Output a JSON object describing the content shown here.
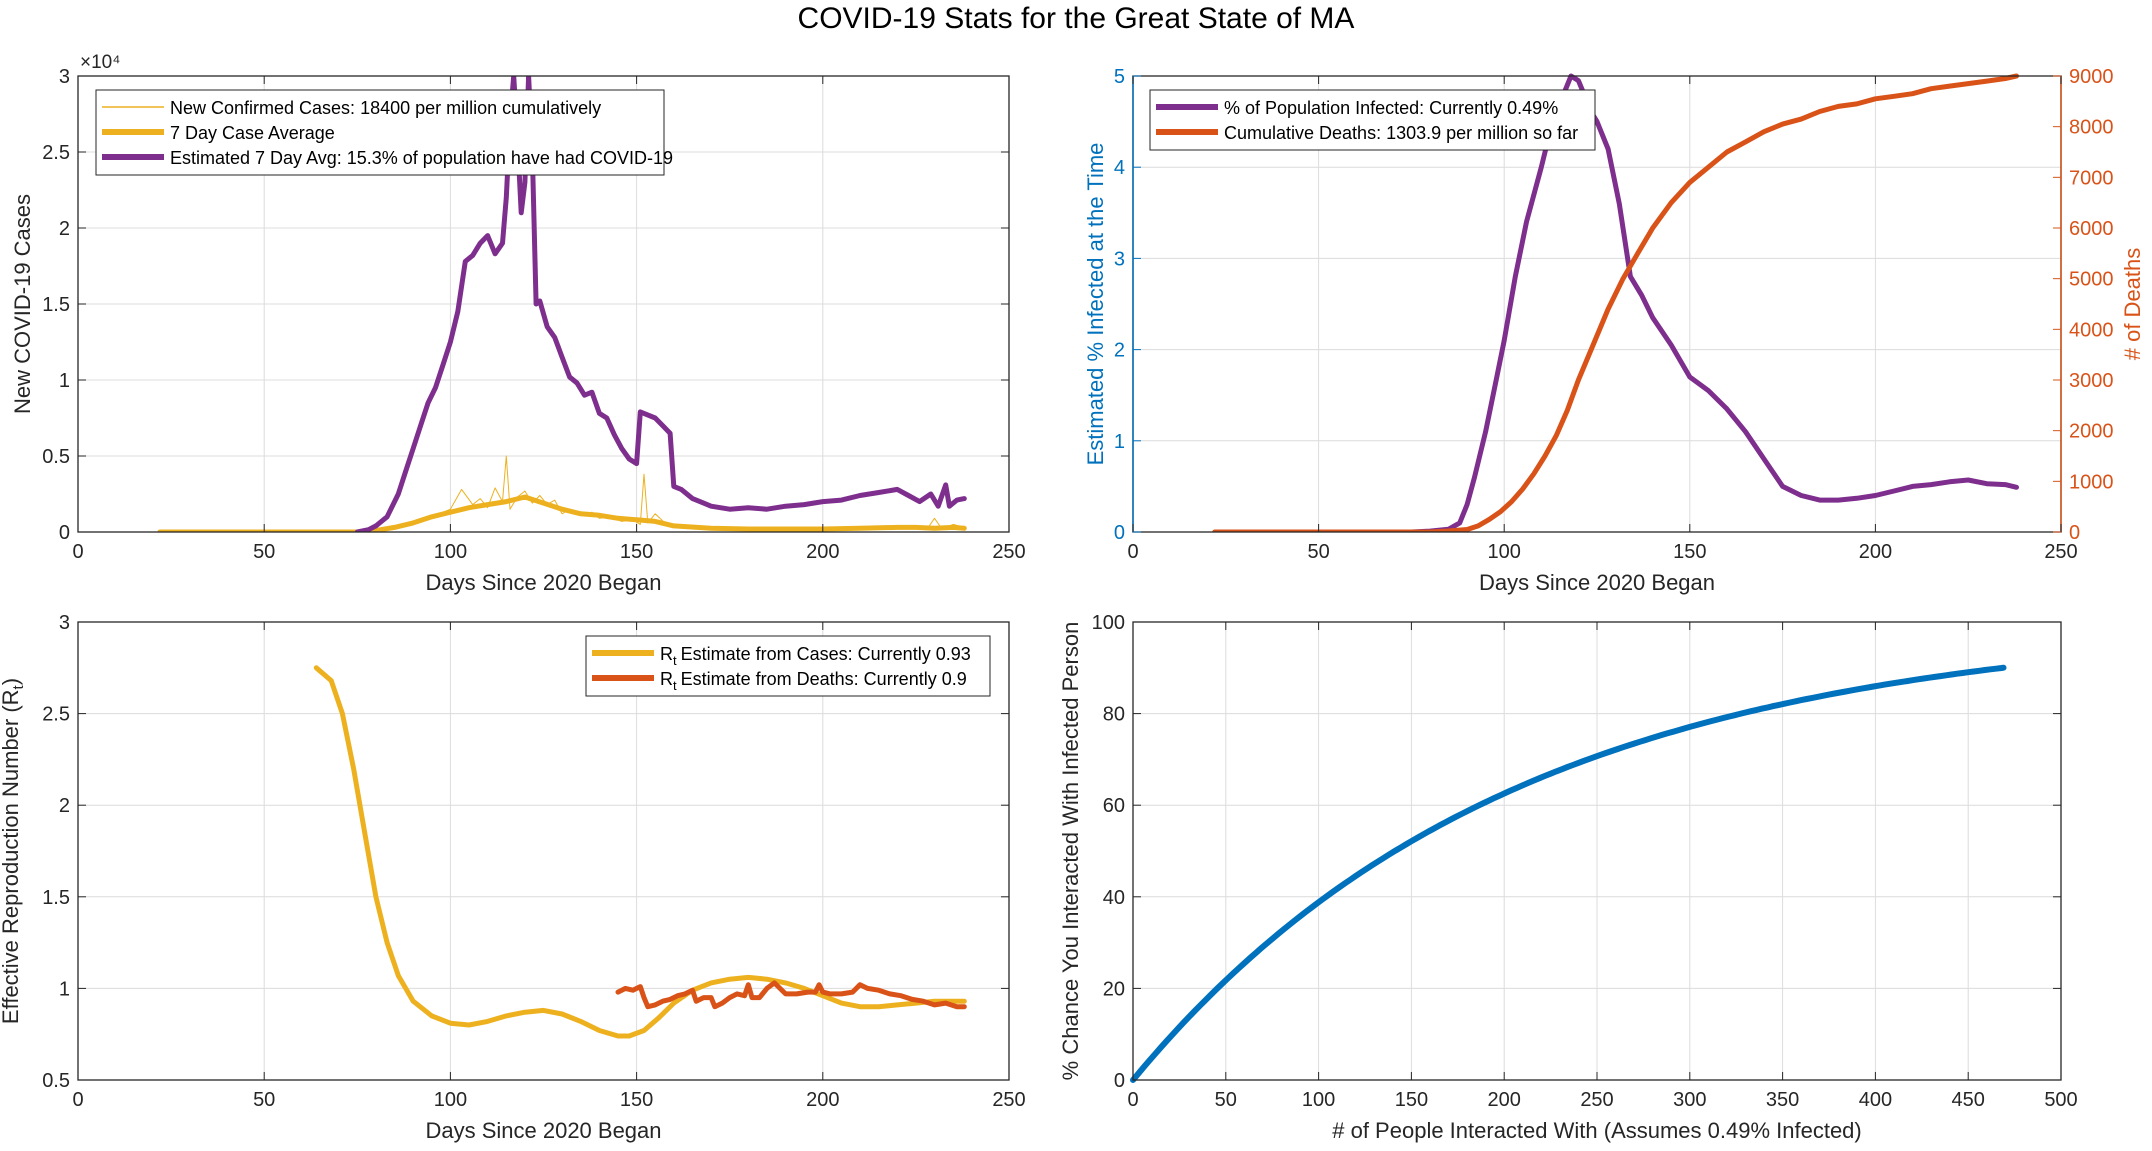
{
  "figure_title": "COVID-19 Stats for the Great State of MA",
  "colors": {
    "purple": "#7E2F8E",
    "yellow": "#EDB120",
    "orange": "#D95319",
    "blue": "#0072BD",
    "axis": "#262626",
    "grid": "#DCDCDC"
  },
  "chart_data": [
    {
      "type": "line",
      "xlabel": "Days Since 2020 Began",
      "ylabel": "New COVID-19 Cases",
      "xlim": [
        0,
        250
      ],
      "ylim": [
        0,
        30000
      ],
      "xticks": [
        0,
        50,
        100,
        150,
        200,
        250
      ],
      "yticks": [
        0,
        5000,
        10000,
        15000,
        20000,
        25000,
        30000
      ],
      "ytick_labels": [
        "0",
        "0.5",
        "1",
        "1.5",
        "2",
        "2.5",
        "3"
      ],
      "y_multiplier": "×10⁴",
      "grid": true,
      "legend": "top-left",
      "series": [
        {
          "name": "New Confirmed Cases: 18400 per million cumulatively",
          "color": "#EDB120",
          "width": 1,
          "x": [
            22,
            60,
            76,
            80,
            85,
            90,
            95,
            100,
            103,
            106,
            108,
            110,
            112,
            114,
            115,
            116,
            118,
            120,
            122,
            124,
            126,
            128,
            130,
            132,
            135,
            138,
            140,
            143,
            146,
            149,
            151,
            152,
            153,
            155,
            158,
            160,
            165,
            170,
            175,
            180,
            185,
            190,
            195,
            200,
            205,
            210,
            215,
            220,
            225,
            228,
            230,
            232,
            235,
            238
          ],
          "y": [
            0,
            0,
            0,
            100,
            300,
            600,
            1000,
            1500,
            2800,
            1800,
            2200,
            1600,
            2900,
            2000,
            5000,
            1500,
            2300,
            2700,
            1900,
            2400,
            1800,
            2100,
            1200,
            1500,
            1100,
            1300,
            900,
            1000,
            700,
            800,
            500,
            3800,
            600,
            1200,
            500,
            400,
            300,
            300,
            200,
            200,
            200,
            200,
            200,
            250,
            300,
            300,
            350,
            400,
            300,
            200,
            900,
            200,
            500,
            300
          ]
        },
        {
          "name": "7 Day Case Average",
          "color": "#EDB120",
          "width": 5,
          "x": [
            22,
            76,
            80,
            85,
            90,
            95,
            100,
            105,
            110,
            115,
            120,
            125,
            130,
            135,
            140,
            145,
            150,
            155,
            160,
            170,
            180,
            190,
            200,
            210,
            220,
            225,
            230,
            235,
            238
          ],
          "y": [
            0,
            0,
            100,
            300,
            600,
            1000,
            1300,
            1600,
            1800,
            2000,
            2300,
            1900,
            1500,
            1200,
            1100,
            900,
            800,
            700,
            400,
            250,
            200,
            200,
            200,
            250,
            300,
            300,
            250,
            300,
            250
          ]
        },
        {
          "name": "Estimated 7 Day Avg: 15.3% of population have had COVID-19",
          "color": "#7E2F8E",
          "width": 5,
          "x": [
            75,
            78,
            80,
            83,
            86,
            88,
            90,
            92,
            94,
            96,
            98,
            100,
            102,
            104,
            106,
            108,
            110,
            112,
            114,
            115,
            116,
            117,
            118,
            119,
            120,
            121,
            122,
            123,
            124,
            126,
            128,
            130,
            132,
            134,
            136,
            138,
            140,
            142,
            144,
            146,
            148,
            150,
            151,
            152,
            155,
            157,
            159,
            160,
            162,
            165,
            168,
            170,
            175,
            180,
            185,
            190,
            195,
            200,
            205,
            210,
            215,
            220,
            223,
            226,
            229,
            231,
            233,
            234,
            236,
            238
          ],
          "y": [
            0,
            150,
            400,
            1000,
            2500,
            4000,
            5500,
            7000,
            8500,
            9500,
            11000,
            12500,
            14500,
            17800,
            18200,
            19000,
            19500,
            18300,
            19000,
            22000,
            27000,
            30000,
            26000,
            21000,
            23000,
            30000,
            25000,
            15000,
            15200,
            13500,
            12800,
            11500,
            10200,
            9800,
            9000,
            9200,
            7800,
            7500,
            6400,
            5500,
            4800,
            4500,
            7900,
            7800,
            7500,
            7000,
            6500,
            3000,
            2800,
            2200,
            1900,
            1700,
            1500,
            1600,
            1500,
            1700,
            1800,
            2000,
            2100,
            2400,
            2600,
            2800,
            2400,
            2000,
            2500,
            1700,
            3100,
            1700,
            2100,
            2200
          ]
        }
      ]
    },
    {
      "type": "line",
      "xlabel": "Days Since 2020 Began",
      "ylabel": "Estimated % Infected at the Time",
      "ylabel_right": "# of Deaths",
      "xlim": [
        0,
        250
      ],
      "ylim": [
        0,
        5
      ],
      "ylim_right": [
        0,
        9000
      ],
      "xticks": [
        0,
        50,
        100,
        150,
        200,
        250
      ],
      "yticks": [
        0,
        1,
        2,
        3,
        4,
        5
      ],
      "yticks_right": [
        0,
        1000,
        2000,
        3000,
        4000,
        5000,
        6000,
        7000,
        8000,
        9000
      ],
      "grid": true,
      "legend": "top-left",
      "series": [
        {
          "name": "% of Population Infected: Currently 0.49%",
          "axis": "left",
          "color": "#7E2F8E",
          "width": 5,
          "x": [
            75,
            80,
            85,
            88,
            90,
            92,
            95,
            98,
            100,
            103,
            106,
            110,
            113,
            116,
            118,
            120,
            121,
            122,
            125,
            128,
            131,
            134,
            137,
            140,
            145,
            150,
            155,
            160,
            165,
            170,
            175,
            180,
            185,
            190,
            195,
            200,
            205,
            210,
            215,
            220,
            225,
            230,
            235,
            238
          ],
          "y": [
            0,
            0.01,
            0.03,
            0.1,
            0.3,
            0.6,
            1.1,
            1.7,
            2.1,
            2.8,
            3.4,
            4.0,
            4.5,
            4.8,
            5.0,
            4.95,
            4.85,
            4.7,
            4.5,
            4.2,
            3.6,
            2.8,
            2.6,
            2.35,
            2.05,
            1.7,
            1.55,
            1.35,
            1.1,
            0.8,
            0.5,
            0.4,
            0.35,
            0.35,
            0.37,
            0.4,
            0.45,
            0.5,
            0.52,
            0.55,
            0.57,
            0.53,
            0.52,
            0.49
          ]
        },
        {
          "name": "Cumulative Deaths: 1303.9 per million so far",
          "axis": "right",
          "color": "#D95319",
          "width": 5,
          "x": [
            22,
            60,
            80,
            85,
            90,
            93,
            96,
            99,
            102,
            105,
            108,
            111,
            114,
            117,
            120,
            124,
            128,
            132,
            136,
            140,
            145,
            150,
            155,
            160,
            165,
            170,
            175,
            180,
            185,
            190,
            195,
            200,
            205,
            210,
            215,
            220,
            225,
            230,
            235,
            238
          ],
          "y": [
            0,
            0,
            0,
            20,
            50,
            120,
            250,
            400,
            600,
            850,
            1150,
            1500,
            1900,
            2400,
            3000,
            3700,
            4400,
            5000,
            5500,
            6000,
            6500,
            6900,
            7200,
            7500,
            7700,
            7900,
            8050,
            8150,
            8300,
            8400,
            8450,
            8550,
            8600,
            8650,
            8750,
            8800,
            8850,
            8900,
            8950,
            9000
          ]
        }
      ]
    },
    {
      "type": "line",
      "xlabel": "Days Since 2020 Began",
      "ylabel": "Effective Reproduction Number (R",
      "ylabel_sub": "t",
      "ylabel_end": ")",
      "xlim": [
        0,
        250
      ],
      "ylim": [
        0.5,
        3
      ],
      "xticks": [
        0,
        50,
        100,
        150,
        200,
        250
      ],
      "yticks": [
        0.5,
        1,
        1.5,
        2,
        2.5,
        3
      ],
      "grid": true,
      "legend": "top-right",
      "series": [
        {
          "name": "Estimate from Cases: Currently 0.93",
          "name_prefix": "R",
          "name_sub": "t",
          "color": "#EDB120",
          "width": 5,
          "x": [
            64,
            68,
            71,
            74,
            77,
            80,
            83,
            86,
            90,
            95,
            100,
            105,
            110,
            115,
            120,
            125,
            130,
            135,
            140,
            145,
            148,
            152,
            156,
            160,
            165,
            170,
            175,
            180,
            185,
            190,
            195,
            200,
            205,
            210,
            215,
            220,
            225,
            230,
            235,
            238
          ],
          "y": [
            2.75,
            2.68,
            2.5,
            2.2,
            1.85,
            1.5,
            1.25,
            1.07,
            0.93,
            0.85,
            0.81,
            0.8,
            0.82,
            0.85,
            0.87,
            0.88,
            0.86,
            0.82,
            0.77,
            0.74,
            0.74,
            0.77,
            0.84,
            0.92,
            0.99,
            1.03,
            1.05,
            1.06,
            1.05,
            1.03,
            1.0,
            0.96,
            0.92,
            0.9,
            0.9,
            0.91,
            0.92,
            0.93,
            0.93,
            0.93
          ]
        },
        {
          "name": "Estimate from Deaths: Currently 0.9",
          "name_prefix": "R",
          "name_sub": "t",
          "color": "#D95319",
          "width": 5,
          "x": [
            145,
            147,
            149,
            151,
            152,
            153,
            155,
            157,
            159,
            161,
            163,
            165,
            166,
            168,
            170,
            171,
            173,
            175,
            177,
            179,
            180,
            181,
            183,
            185,
            187,
            190,
            193,
            196,
            198,
            199,
            200,
            202,
            205,
            208,
            210,
            212,
            215,
            218,
            221,
            224,
            227,
            230,
            233,
            236,
            238
          ],
          "y": [
            0.98,
            1.0,
            0.99,
            1.01,
            0.95,
            0.9,
            0.91,
            0.93,
            0.94,
            0.96,
            0.97,
            0.99,
            0.93,
            0.95,
            0.95,
            0.9,
            0.92,
            0.95,
            0.97,
            0.96,
            1.02,
            0.95,
            0.95,
            1.0,
            1.03,
            0.97,
            0.97,
            0.98,
            0.98,
            1.02,
            0.98,
            0.97,
            0.97,
            0.98,
            1.02,
            1.0,
            0.99,
            0.97,
            0.96,
            0.94,
            0.93,
            0.91,
            0.92,
            0.9,
            0.9
          ]
        }
      ]
    },
    {
      "type": "line",
      "xlabel": "# of People Interacted With (Assumes 0.49% Infected)",
      "ylabel": "% Chance You Interacted With Infected Person",
      "xlim": [
        0,
        500
      ],
      "ylim": [
        0,
        100
      ],
      "xticks": [
        0,
        50,
        100,
        150,
        200,
        250,
        300,
        350,
        400,
        450,
        500
      ],
      "yticks": [
        0,
        20,
        40,
        60,
        80,
        100
      ],
      "grid": true,
      "legend": "none",
      "curve": {
        "prob": 0.0049,
        "n_max": 469,
        "color": "#0072BD",
        "width": 6
      }
    }
  ]
}
